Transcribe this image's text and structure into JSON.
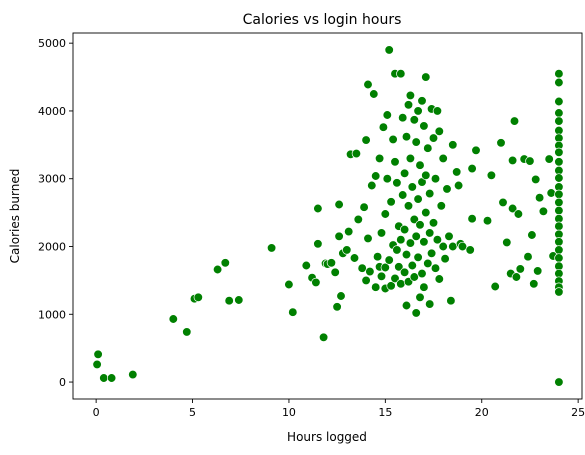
{
  "chart_data": {
    "type": "scatter",
    "title": "Calories vs login hours",
    "xlabel": "Hours logged",
    "ylabel": "Calories burned",
    "xlim": [
      -1.2,
      25.2
    ],
    "ylim": [
      -250,
      5150
    ],
    "xticks": [
      0,
      5,
      10,
      15,
      20,
      25
    ],
    "yticks": [
      0,
      1000,
      2000,
      3000,
      4000,
      5000
    ],
    "grid": false,
    "legend": "none",
    "color": "#008000",
    "points": [
      [
        0.1,
        410
      ],
      [
        0.05,
        260
      ],
      [
        0.4,
        60
      ],
      [
        0.8,
        60
      ],
      [
        1.9,
        110
      ],
      [
        4.0,
        930
      ],
      [
        4.7,
        740
      ],
      [
        5.1,
        1230
      ],
      [
        5.3,
        1250
      ],
      [
        6.3,
        1660
      ],
      [
        6.7,
        1760
      ],
      [
        6.9,
        1200
      ],
      [
        7.4,
        1210
      ],
      [
        9.1,
        1980
      ],
      [
        10.0,
        1440
      ],
      [
        10.2,
        1030
      ],
      [
        10.9,
        1720
      ],
      [
        11.2,
        1540
      ],
      [
        11.4,
        1470
      ],
      [
        11.5,
        2040
      ],
      [
        11.5,
        2560
      ],
      [
        11.8,
        660
      ],
      [
        11.9,
        1750
      ],
      [
        12.0,
        1740
      ],
      [
        12.2,
        1760
      ],
      [
        12.4,
        1620
      ],
      [
        12.5,
        1110
      ],
      [
        12.6,
        2150
      ],
      [
        12.6,
        2620
      ],
      [
        12.7,
        1270
      ],
      [
        12.8,
        1900
      ],
      [
        13.0,
        1950
      ],
      [
        13.1,
        2220
      ],
      [
        13.2,
        3360
      ],
      [
        13.4,
        1830
      ],
      [
        13.5,
        3370
      ],
      [
        13.6,
        2400
      ],
      [
        13.8,
        1680
      ],
      [
        13.9,
        2580
      ],
      [
        14.0,
        1500
      ],
      [
        14.0,
        3570
      ],
      [
        14.1,
        2120
      ],
      [
        14.1,
        4390
      ],
      [
        14.2,
        1630
      ],
      [
        14.3,
        2900
      ],
      [
        14.4,
        4250
      ],
      [
        14.5,
        1400
      ],
      [
        14.5,
        3040
      ],
      [
        14.6,
        1850
      ],
      [
        14.7,
        1700
      ],
      [
        14.7,
        3300
      ],
      [
        14.8,
        2200
      ],
      [
        14.8,
        1560
      ],
      [
        14.9,
        3760
      ],
      [
        15.0,
        1380
      ],
      [
        15.0,
        2480
      ],
      [
        15.0,
        1690
      ],
      [
        15.1,
        3940
      ],
      [
        15.1,
        3000
      ],
      [
        15.2,
        4900
      ],
      [
        15.2,
        1800
      ],
      [
        15.3,
        1420
      ],
      [
        15.3,
        2660
      ],
      [
        15.4,
        3580
      ],
      [
        15.4,
        2020
      ],
      [
        15.5,
        4550
      ],
      [
        15.5,
        1530
      ],
      [
        15.5,
        3250
      ],
      [
        15.6,
        2940
      ],
      [
        15.6,
        1950
      ],
      [
        15.7,
        1700
      ],
      [
        15.7,
        2300
      ],
      [
        15.8,
        4550
      ],
      [
        15.8,
        1450
      ],
      [
        15.8,
        2100
      ],
      [
        15.9,
        3900
      ],
      [
        15.9,
        2760
      ],
      [
        16.0,
        1620
      ],
      [
        16.0,
        2250
      ],
      [
        16.0,
        3080
      ],
      [
        16.1,
        1130
      ],
      [
        16.1,
        1880
      ],
      [
        16.1,
        3620
      ],
      [
        16.2,
        4090
      ],
      [
        16.2,
        2600
      ],
      [
        16.2,
        1480
      ],
      [
        16.3,
        4230
      ],
      [
        16.3,
        2050
      ],
      [
        16.3,
        3300
      ],
      [
        16.4,
        1720
      ],
      [
        16.4,
        2880
      ],
      [
        16.5,
        3870
      ],
      [
        16.5,
        1550
      ],
      [
        16.5,
        2400
      ],
      [
        16.6,
        3540
      ],
      [
        16.6,
        1020
      ],
      [
        16.6,
        2150
      ],
      [
        16.7,
        4000
      ],
      [
        16.7,
        2700
      ],
      [
        16.7,
        1840
      ],
      [
        16.8,
        3200
      ],
      [
        16.8,
        1250
      ],
      [
        16.8,
        2320
      ],
      [
        16.9,
        4150
      ],
      [
        16.9,
        1600
      ],
      [
        16.9,
        2950
      ],
      [
        17.0,
        3780
      ],
      [
        17.0,
        2070
      ],
      [
        17.0,
        1400
      ],
      [
        17.1,
        4500
      ],
      [
        17.1,
        2500
      ],
      [
        17.1,
        3050
      ],
      [
        17.2,
        1750
      ],
      [
        17.2,
        3450
      ],
      [
        17.3,
        1150
      ],
      [
        17.3,
        2200
      ],
      [
        17.3,
        2780
      ],
      [
        17.4,
        4030
      ],
      [
        17.4,
        1900
      ],
      [
        17.5,
        3600
      ],
      [
        17.5,
        2350
      ],
      [
        17.6,
        1680
      ],
      [
        17.6,
        3000
      ],
      [
        17.7,
        4000
      ],
      [
        17.7,
        2100
      ],
      [
        17.8,
        3700
      ],
      [
        17.8,
        1520
      ],
      [
        17.9,
        2600
      ],
      [
        18.0,
        3300
      ],
      [
        18.0,
        2000
      ],
      [
        18.1,
        1820
      ],
      [
        18.2,
        2850
      ],
      [
        18.3,
        2150
      ],
      [
        18.4,
        1200
      ],
      [
        18.5,
        3500
      ],
      [
        18.5,
        2000
      ],
      [
        18.7,
        3100
      ],
      [
        18.8,
        2900
      ],
      [
        18.9,
        2040
      ],
      [
        19.0,
        2000
      ],
      [
        19.4,
        1950
      ],
      [
        19.5,
        3150
      ],
      [
        19.7,
        3420
      ],
      [
        19.5,
        2410
      ],
      [
        20.3,
        2380
      ],
      [
        20.5,
        3050
      ],
      [
        20.7,
        1410
      ],
      [
        21.0,
        3530
      ],
      [
        21.1,
        2650
      ],
      [
        21.3,
        2060
      ],
      [
        21.5,
        1600
      ],
      [
        21.6,
        2560
      ],
      [
        21.6,
        3270
      ],
      [
        21.7,
        3850
      ],
      [
        21.8,
        1550
      ],
      [
        21.9,
        2480
      ],
      [
        22.0,
        1670
      ],
      [
        22.2,
        3290
      ],
      [
        22.4,
        1850
      ],
      [
        22.5,
        3260
      ],
      [
        22.6,
        2170
      ],
      [
        22.7,
        1450
      ],
      [
        22.8,
        2990
      ],
      [
        22.9,
        1640
      ],
      [
        23.0,
        2720
      ],
      [
        23.2,
        2520
      ],
      [
        23.5,
        3290
      ],
      [
        23.6,
        2790
      ],
      [
        23.7,
        1860
      ],
      [
        24.0,
        4550
      ],
      [
        24.0,
        4420
      ],
      [
        24.0,
        4140
      ],
      [
        24.0,
        3970
      ],
      [
        24.0,
        3850
      ],
      [
        24.0,
        3710
      ],
      [
        24.0,
        3600
      ],
      [
        24.0,
        3490
      ],
      [
        24.0,
        3390
      ],
      [
        24.0,
        3250
      ],
      [
        24.0,
        3120
      ],
      [
        24.0,
        3010
      ],
      [
        24.0,
        2880
      ],
      [
        24.0,
        2770
      ],
      [
        24.0,
        2650
      ],
      [
        24.0,
        2530
      ],
      [
        24.0,
        2410
      ],
      [
        24.0,
        2300
      ],
      [
        24.0,
        2180
      ],
      [
        24.0,
        2070
      ],
      [
        24.0,
        1950
      ],
      [
        24.0,
        1830
      ],
      [
        24.0,
        1710
      ],
      [
        24.0,
        1600
      ],
      [
        24.0,
        1490
      ],
      [
        24.0,
        1400
      ],
      [
        24.0,
        1330
      ],
      [
        24.0,
        0
      ]
    ]
  }
}
